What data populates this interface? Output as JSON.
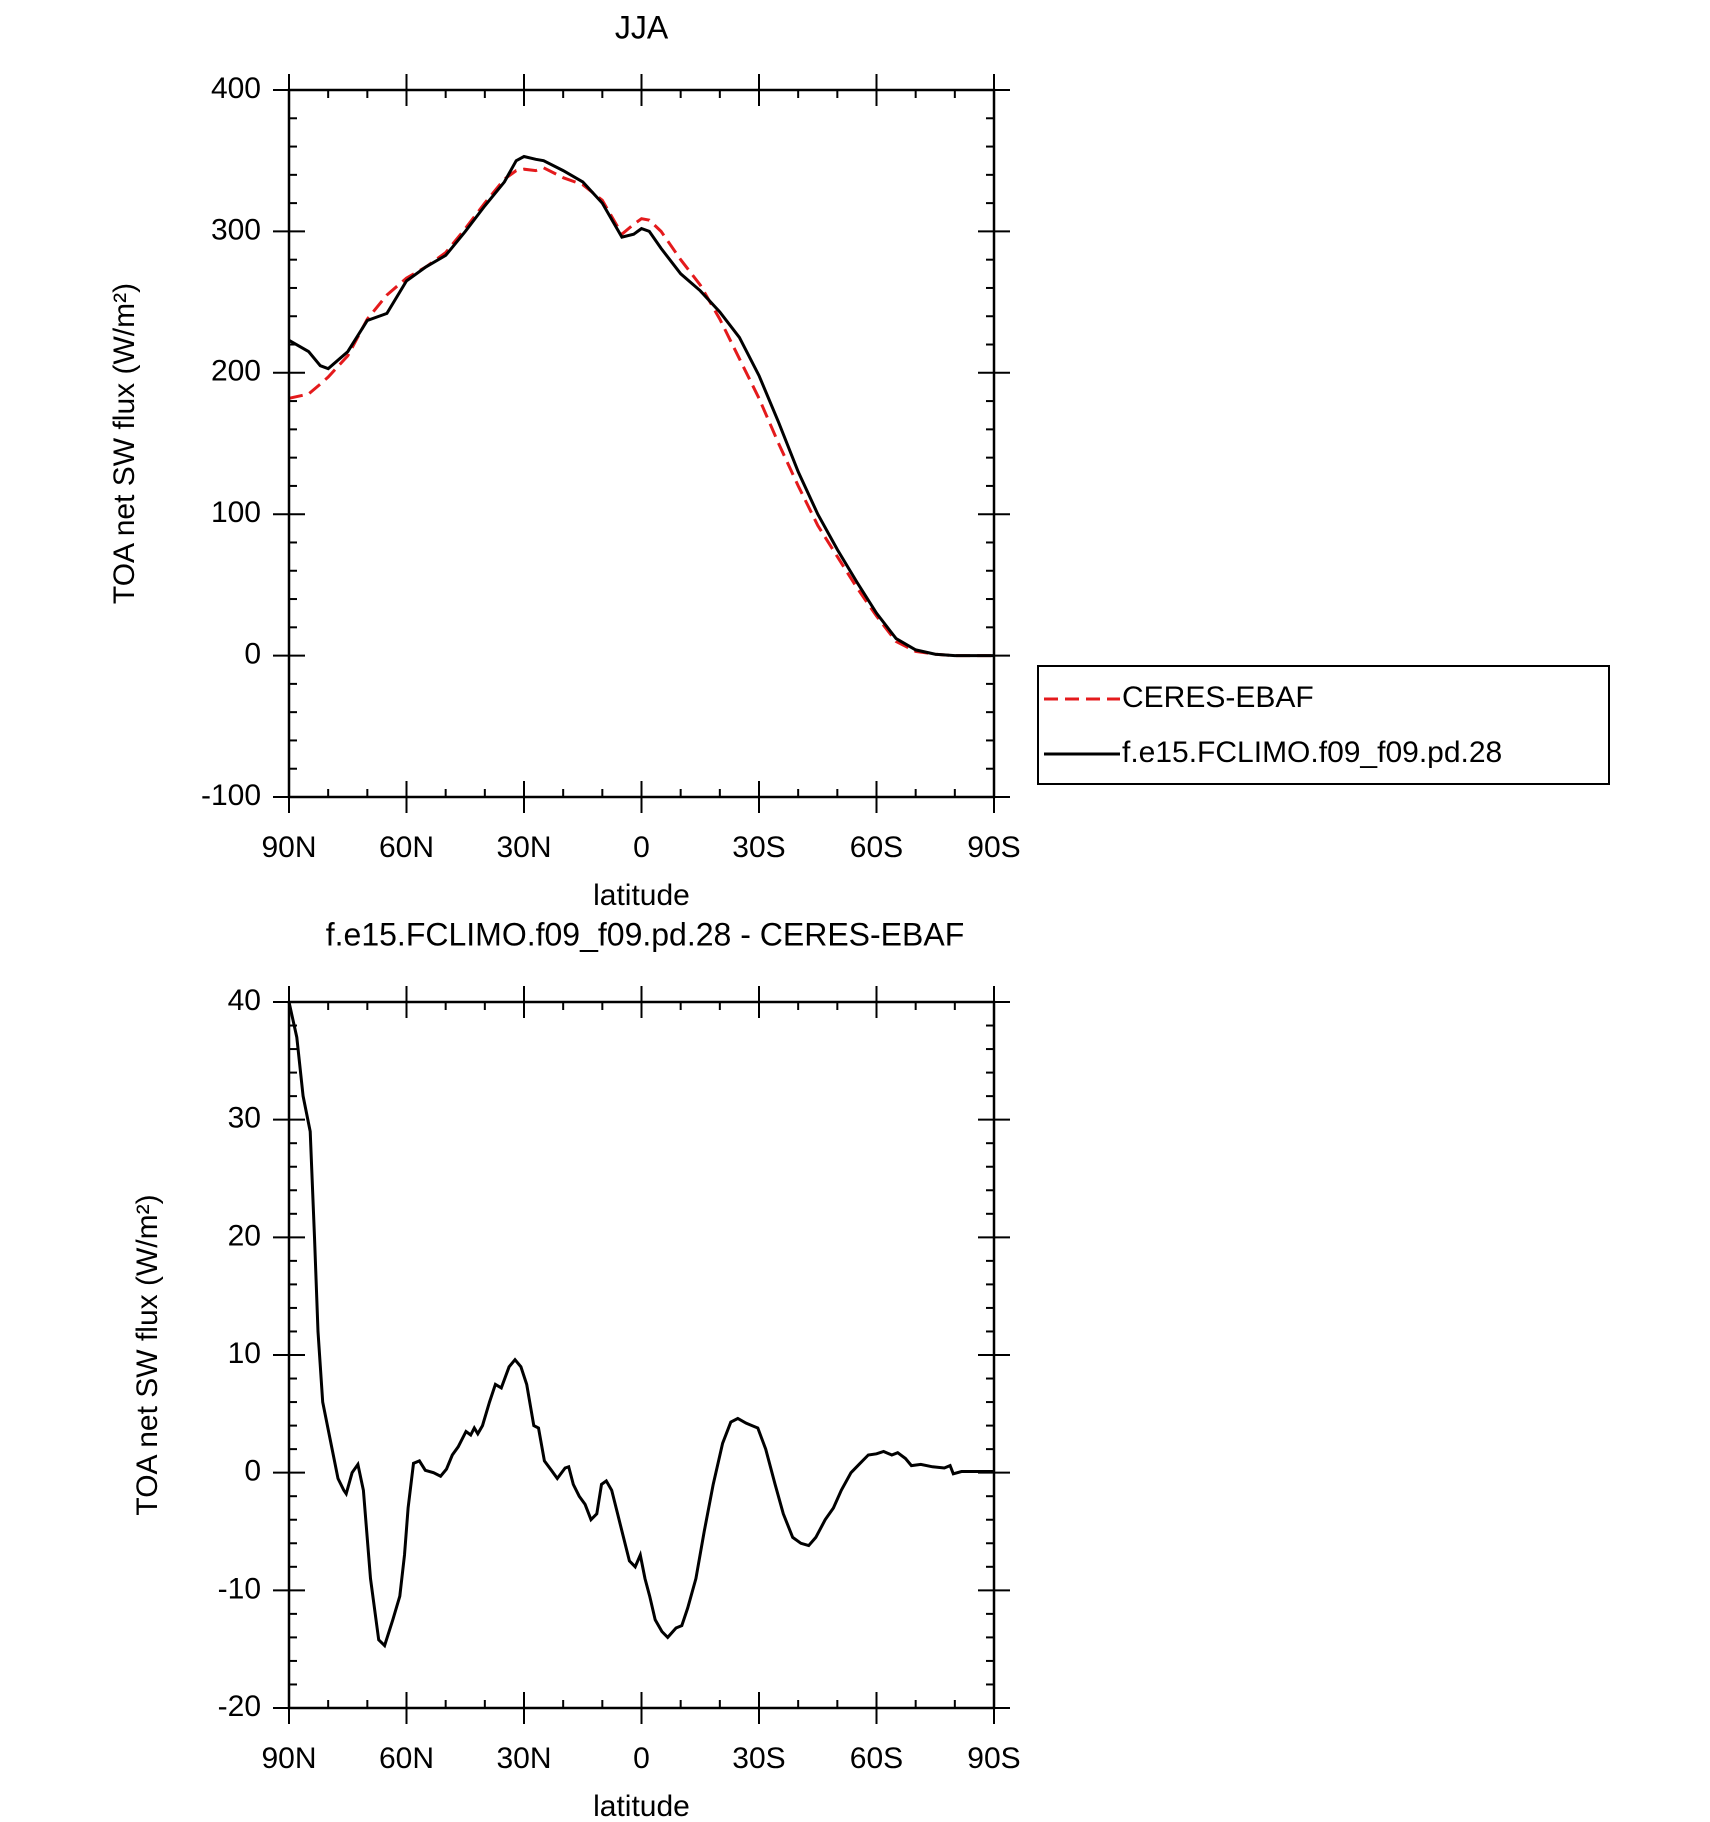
{
  "chart_data": [
    {
      "type": "line",
      "title": "JJA",
      "xlabel": "latitude",
      "ylabel": "TOA net SW flux (W/m²)",
      "x": [
        90,
        85,
        82,
        80,
        75,
        70,
        65,
        60,
        55,
        50,
        45,
        40,
        35,
        32,
        30,
        27,
        25,
        20,
        15,
        10,
        5,
        2,
        0,
        -2,
        -5,
        -10,
        -15,
        -20,
        -25,
        -30,
        -35,
        -40,
        -45,
        -50,
        -55,
        -60,
        -65,
        -70,
        -75,
        -80,
        -85,
        -90
      ],
      "series": [
        {
          "name": "CERES-EBAF",
          "color": "#e41a1c",
          "dash": true,
          "values": [
            182,
            185,
            192,
            197,
            212,
            238,
            255,
            267,
            275,
            285,
            302,
            320,
            337,
            343,
            344,
            343,
            345,
            338,
            333,
            322,
            298,
            305,
            309,
            308,
            300,
            280,
            262,
            238,
            210,
            182,
            150,
            120,
            92,
            70,
            48,
            28,
            10,
            3,
            1,
            0,
            0,
            0
          ]
        },
        {
          "name": "f.e15.FCLIMO.f09_f09.pd.28",
          "color": "#000000",
          "dash": false,
          "values": [
            223,
            215,
            205,
            203,
            215,
            237,
            242,
            265,
            275,
            283,
            300,
            318,
            335,
            350,
            353,
            351,
            350,
            343,
            335,
            320,
            296,
            298,
            302,
            300,
            288,
            270,
            258,
            243,
            225,
            198,
            165,
            130,
            100,
            75,
            52,
            30,
            12,
            4,
            1,
            0,
            0,
            0
          ]
        }
      ],
      "xlim": [
        90,
        -90
      ],
      "xticks": [
        {
          "value": 90,
          "label": "90N"
        },
        {
          "value": 60,
          "label": "60N"
        },
        {
          "value": 30,
          "label": "30N"
        },
        0,
        {
          "value": -30,
          "label": "30S"
        },
        {
          "value": -60,
          "label": "60S"
        },
        {
          "value": -90,
          "label": "90S"
        }
      ],
      "xminorticks": [
        80,
        70,
        50,
        40,
        20,
        10,
        -10,
        -20,
        -40,
        -50,
        -70,
        -80
      ],
      "ylim": [
        -100,
        400
      ],
      "yticks": [
        -100,
        0,
        100,
        200,
        300,
        400
      ],
      "yminorticks": [
        -80,
        -60,
        -40,
        -20,
        20,
        40,
        60,
        80,
        120,
        140,
        160,
        180,
        220,
        240,
        260,
        280,
        320,
        340,
        360,
        380
      ],
      "legend": "right"
    },
    {
      "type": "line",
      "title": "f.e15.FCLIMO.f09_f09.pd.28 - CERES-EBAF",
      "xlabel": "latitude",
      "ylabel": "TOA net SW flux (W/m²)",
      "x": [
        90,
        88,
        86.4,
        84.6,
        83.5,
        82.6,
        81.4,
        79,
        77.5,
        76,
        75.4,
        73.9,
        72.4,
        71,
        69.2,
        67.1,
        65.6,
        63.5,
        61.7,
        60.5,
        59.6,
        58.2,
        56.7,
        55.2,
        53.1,
        51.3,
        49.8,
        48.3,
        46.8,
        44.8,
        43.6,
        42.7,
        41.8,
        40.6,
        38.8,
        37.3,
        35.8,
        33.8,
        32.3,
        30.8,
        29.3,
        27.5,
        26.3,
        24.8,
        23,
        21.5,
        19.5,
        18.6,
        17.4,
        15.9,
        14.4,
        12.9,
        11.4,
        10.2,
        9,
        7.6,
        6.1,
        4.6,
        3.1,
        1.6,
        0.3,
        -0.9,
        -2.1,
        -3.5,
        -5.2,
        -6.7,
        -8.8,
        -10.3,
        -11.8,
        -13.9,
        -16,
        -18.3,
        -20.7,
        -22.8,
        -24.6,
        -26.7,
        -28.2,
        -29.7,
        -31.7,
        -34.1,
        -36.2,
        -38.6,
        -40.7,
        -42.7,
        -44.5,
        -46.9,
        -49,
        -51,
        -53.5,
        -55.8,
        -57.9,
        -60,
        -61.8,
        -63.9,
        -65.4,
        -67.4,
        -68.9,
        -71.3,
        -74.3,
        -77.3,
        -78.8,
        -79.6,
        -81.7,
        -86.2,
        -90
      ],
      "series": [
        {
          "color": "#000000",
          "dash": false,
          "values": [
            40,
            37,
            32,
            29,
            20,
            12,
            6,
            2,
            -0.5,
            -1.5,
            -1.8,
            0,
            0.7,
            -1.5,
            -9,
            -14.2,
            -14.7,
            -12.5,
            -10.5,
            -7,
            -3,
            0.8,
            1,
            0.2,
            0,
            -0.3,
            0.3,
            1.5,
            2.2,
            3.5,
            3.2,
            3.8,
            3.3,
            4,
            6,
            7.5,
            7.2,
            9,
            9.6,
            9,
            7.5,
            4,
            3.8,
            1,
            0.2,
            -0.5,
            0.4,
            0.5,
            -1,
            -2,
            -2.7,
            -4,
            -3.5,
            -1,
            -0.7,
            -1.5,
            -3.5,
            -5.5,
            -7.5,
            -8,
            -7,
            -9,
            -10.5,
            -12.5,
            -13.5,
            -14,
            -13.2,
            -13,
            -11.5,
            -9,
            -5,
            -1,
            2.5,
            4.3,
            4.6,
            4.2,
            4,
            3.8,
            2,
            -1,
            -3.5,
            -5.5,
            -6,
            -6.2,
            -5.5,
            -4,
            -3,
            -1.5,
            0,
            0.8,
            1.5,
            1.6,
            1.8,
            1.5,
            1.7,
            1.2,
            0.6,
            0.7,
            0.5,
            0.4,
            0.6,
            -0.1,
            0.1,
            0.1,
            0.1
          ]
        }
      ],
      "xlim": [
        90,
        -90
      ],
      "xticks": [
        {
          "value": 90,
          "label": "90N"
        },
        {
          "value": 60,
          "label": "60N"
        },
        {
          "value": 30,
          "label": "30N"
        },
        0,
        {
          "value": -30,
          "label": "30S"
        },
        {
          "value": -60,
          "label": "60S"
        },
        {
          "value": -90,
          "label": "90S"
        }
      ],
      "xminorticks": [
        80,
        70,
        50,
        40,
        20,
        10,
        -10,
        -20,
        -40,
        -50,
        -70,
        -80
      ],
      "ylim": [
        -20,
        40
      ],
      "yticks": [
        -20,
        -10,
        0,
        10,
        20,
        30,
        40
      ],
      "yminorticks": [
        -18,
        -16,
        -14,
        -12,
        -8,
        -6,
        -4,
        -2,
        2,
        4,
        6,
        8,
        12,
        14,
        16,
        18,
        22,
        24,
        26,
        28,
        32,
        34,
        36,
        38
      ]
    }
  ]
}
